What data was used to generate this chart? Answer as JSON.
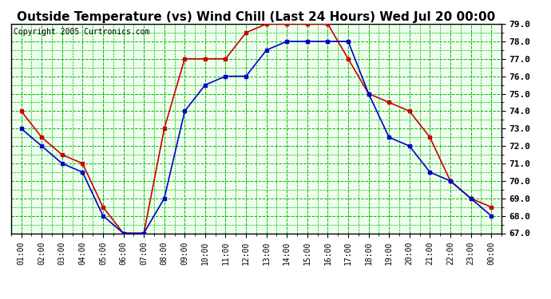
{
  "title": "Outside Temperature (vs) Wind Chill (Last 24 Hours) Wed Jul 20 00:00",
  "copyright": "Copyright 2005 Curtronics.com",
  "x_labels": [
    "01:00",
    "02:00",
    "03:00",
    "04:00",
    "05:00",
    "06:00",
    "07:00",
    "08:00",
    "09:00",
    "10:00",
    "11:00",
    "12:00",
    "13:00",
    "14:00",
    "15:00",
    "16:00",
    "17:00",
    "18:00",
    "19:00",
    "20:00",
    "21:00",
    "22:00",
    "23:00",
    "00:00"
  ],
  "outside_temp": [
    74.0,
    72.5,
    71.5,
    71.0,
    68.5,
    67.0,
    67.0,
    73.0,
    77.0,
    77.0,
    77.0,
    78.5,
    79.0,
    79.0,
    79.0,
    79.0,
    77.0,
    75.0,
    74.5,
    74.0,
    72.5,
    70.0,
    69.0,
    68.5
  ],
  "wind_chill": [
    73.0,
    72.0,
    71.0,
    70.5,
    68.0,
    67.0,
    67.0,
    69.0,
    74.0,
    75.5,
    76.0,
    76.0,
    77.5,
    78.0,
    78.0,
    78.0,
    78.0,
    75.0,
    72.5,
    72.0,
    70.5,
    70.0,
    69.0,
    68.0
  ],
  "outside_temp_color": "#cc0000",
  "wind_chill_color": "#0000cc",
  "ylim_min": 67.0,
  "ylim_max": 79.0,
  "yticks": [
    67.0,
    68.0,
    69.0,
    70.0,
    71.0,
    72.0,
    73.0,
    74.0,
    75.0,
    76.0,
    77.0,
    78.0,
    79.0
  ],
  "bg_color": "#ffffff",
  "plot_bg_color": "#eeffee",
  "grid_color_minor": "#00bb00",
  "grid_color_major": "#aaaaaa",
  "title_fontsize": 11,
  "marker": "s",
  "marker_size": 3,
  "line_width": 1.2,
  "copyright_fontsize": 7
}
